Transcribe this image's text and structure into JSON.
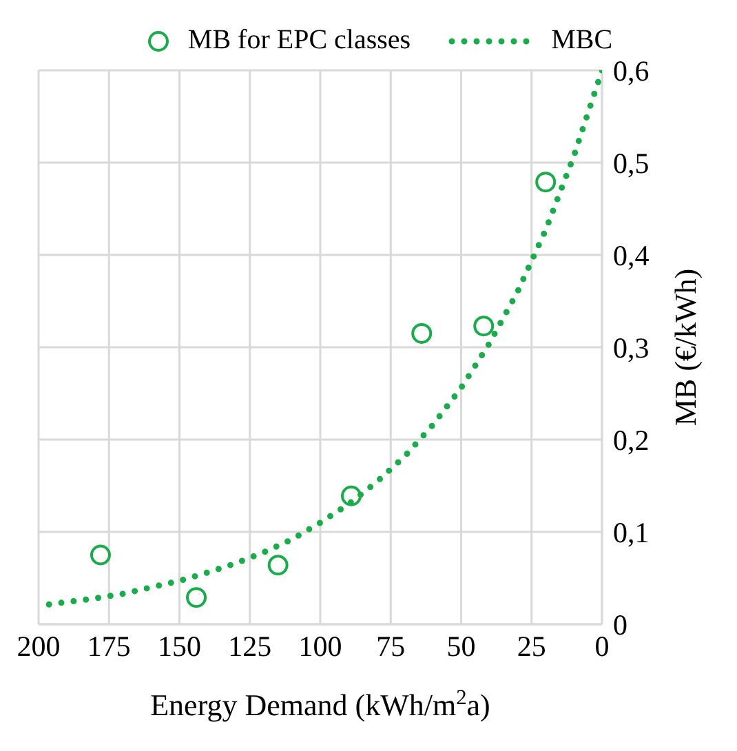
{
  "chart_data": {
    "type": "scatter",
    "xlabel": "Energy Demand (kWh/m$^{2}$a)",
    "ylabel": "MB (€/kWh)",
    "xlim": [
      200,
      0
    ],
    "xticks": [
      200,
      175,
      150,
      125,
      100,
      75,
      50,
      25,
      0
    ],
    "ylim": [
      0,
      0.6
    ],
    "yticks": [
      {
        "value": 0,
        "label": "0"
      },
      {
        "value": 0.1,
        "label": "0,1"
      },
      {
        "value": 0.2,
        "label": "0,2"
      },
      {
        "value": 0.3,
        "label": "0,3"
      },
      {
        "value": 0.4,
        "label": "0,4"
      },
      {
        "value": 0.5,
        "label": "0,5"
      },
      {
        "value": 0.6,
        "label": "0,6"
      }
    ],
    "grid": true,
    "legend": "top",
    "series": [
      {
        "name": "MB for EPC classes",
        "color": "#1aab4b",
        "marker": "circle",
        "x": [
          178,
          144,
          115,
          89,
          64,
          42,
          20
        ],
        "values": [
          0.075,
          0.029,
          0.064,
          0.139,
          0.315,
          0.323,
          0.479
        ]
      },
      {
        "name": "MBC",
        "type": "line",
        "color": "#1aab4b",
        "marker": "none",
        "line_style": "dotted",
        "x": [
          0,
          10,
          20,
          30,
          40,
          50,
          60,
          70,
          80,
          90,
          100,
          110,
          120,
          130,
          140,
          150,
          160,
          170,
          180,
          190,
          200
        ],
        "values": [
          0.6,
          0.507,
          0.427,
          0.36,
          0.304,
          0.256,
          0.216,
          0.182,
          0.154,
          0.13,
          0.11,
          0.092,
          0.078,
          0.066,
          0.056,
          0.047,
          0.04,
          0.033,
          0.028,
          0.024,
          0.02
        ]
      }
    ]
  }
}
